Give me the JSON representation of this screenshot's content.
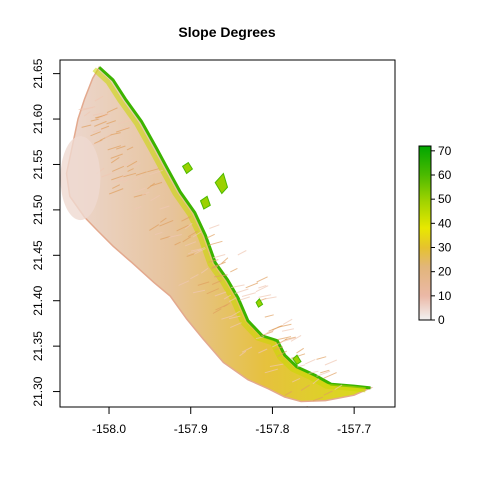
{
  "chart_data": {
    "type": "heatmap",
    "title": "Slope Degrees",
    "xlabel": "",
    "ylabel": "",
    "xlim": [
      -158.06,
      -157.65
    ],
    "ylim": [
      21.283,
      21.665
    ],
    "x_ticks": [
      -158.0,
      -157.9,
      -157.8,
      -157.7
    ],
    "x_tick_labels": [
      "-158.0",
      "-157.9",
      "-157.8",
      "-157.7"
    ],
    "y_ticks": [
      21.3,
      21.35,
      21.4,
      21.45,
      21.5,
      21.55,
      21.6,
      21.65
    ],
    "y_tick_labels": [
      "21.30",
      "21.35",
      "21.40",
      "21.45",
      "21.50",
      "21.55",
      "21.60",
      "21.65"
    ],
    "legend": {
      "placement": "right",
      "min": 0,
      "max": 72,
      "ticks": [
        0,
        10,
        20,
        30,
        40,
        50,
        60,
        70
      ],
      "tick_labels": [
        "0",
        "10",
        "20",
        "30",
        "40",
        "50",
        "60",
        "70"
      ],
      "color_stops": [
        {
          "value": 0,
          "color": "#f2f2f2"
        },
        {
          "value": 10,
          "color": "#ebb8a6"
        },
        {
          "value": 22,
          "color": "#e2b67a"
        },
        {
          "value": 30,
          "color": "#e6c22e"
        },
        {
          "value": 38,
          "color": "#e8e800"
        },
        {
          "value": 50,
          "color": "#9bd100"
        },
        {
          "value": 60,
          "color": "#4cba00"
        },
        {
          "value": 72,
          "color": "#00a600"
        }
      ]
    },
    "coast_outline": [
      [
        -158.012,
        21.657
      ],
      [
        -157.995,
        21.643
      ],
      [
        -157.98,
        21.622
      ],
      [
        -157.96,
        21.597
      ],
      [
        -157.942,
        21.568
      ],
      [
        -157.93,
        21.548
      ],
      [
        -157.913,
        21.52
      ],
      [
        -157.895,
        21.497
      ],
      [
        -157.882,
        21.472
      ],
      [
        -157.87,
        21.442
      ],
      [
        -157.855,
        21.423
      ],
      [
        -157.842,
        21.403
      ],
      [
        -157.83,
        21.378
      ],
      [
        -157.812,
        21.361
      ],
      [
        -157.794,
        21.356
      ],
      [
        -157.785,
        21.34
      ],
      [
        -157.77,
        21.327
      ],
      [
        -157.748,
        21.318
      ],
      [
        -157.728,
        21.308
      ],
      [
        -157.7,
        21.306
      ],
      [
        -157.68,
        21.304
      ],
      [
        -157.7,
        21.296
      ],
      [
        -157.735,
        21.29
      ],
      [
        -157.765,
        21.289
      ],
      [
        -157.785,
        21.294
      ],
      [
        -157.805,
        21.303
      ],
      [
        -157.83,
        21.313
      ],
      [
        -157.86,
        21.332
      ],
      [
        -157.885,
        21.358
      ],
      [
        -157.905,
        21.38
      ],
      [
        -157.925,
        21.405
      ],
      [
        -157.945,
        21.42
      ],
      [
        -157.972,
        21.442
      ],
      [
        -157.995,
        21.46
      ],
      [
        -158.015,
        21.478
      ],
      [
        -158.03,
        21.492
      ],
      [
        -158.048,
        21.515
      ],
      [
        -158.052,
        21.54
      ],
      [
        -158.045,
        21.57
      ],
      [
        -158.038,
        21.6
      ],
      [
        -158.03,
        21.622
      ],
      [
        -158.02,
        21.645
      ]
    ],
    "outer_islets": [
      [
        [
          -157.91,
          21.548
        ],
        [
          -157.903,
          21.552
        ],
        [
          -157.898,
          21.545
        ],
        [
          -157.905,
          21.54
        ]
      ],
      [
        [
          -157.87,
          21.53
        ],
        [
          -157.86,
          21.54
        ],
        [
          -157.855,
          21.525
        ],
        [
          -157.862,
          21.518
        ]
      ],
      [
        [
          -157.888,
          21.51
        ],
        [
          -157.88,
          21.515
        ],
        [
          -157.876,
          21.505
        ],
        [
          -157.884,
          21.501
        ]
      ],
      [
        [
          -157.775,
          21.336
        ],
        [
          -157.77,
          21.34
        ],
        [
          -157.765,
          21.333
        ],
        [
          -157.77,
          21.33
        ]
      ],
      [
        [
          -157.82,
          21.398
        ],
        [
          -157.816,
          21.402
        ],
        [
          -157.812,
          21.396
        ],
        [
          -157.817,
          21.393
        ]
      ]
    ]
  }
}
